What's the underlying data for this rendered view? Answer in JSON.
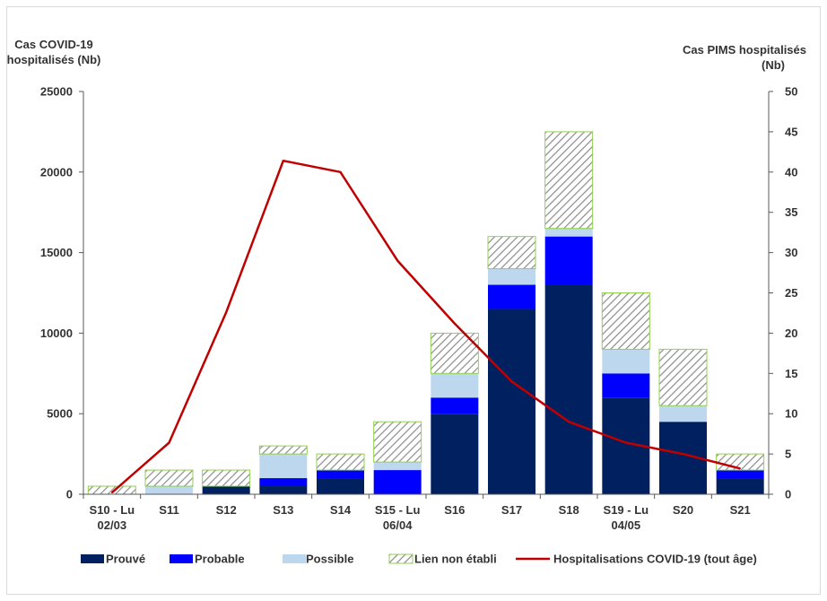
{
  "chart_data": {
    "type": "bar",
    "stacked": true,
    "categories": [
      [
        "S10 - Lu",
        "02/03"
      ],
      [
        "S11"
      ],
      [
        "S12"
      ],
      [
        "S13"
      ],
      [
        "S14"
      ],
      [
        "S15 - Lu",
        "06/04"
      ],
      [
        "S16"
      ],
      [
        "S17"
      ],
      [
        "S18"
      ],
      [
        "S19 - Lu",
        "04/05"
      ],
      [
        "S20"
      ],
      [
        "S21"
      ]
    ],
    "y_left": {
      "label_lines": [
        "Cas  COVID-19",
        "hospitalisés  (Nb)"
      ],
      "range": [
        0,
        25000
      ],
      "ticks": [
        0,
        5000,
        10000,
        15000,
        20000,
        25000
      ]
    },
    "y_right": {
      "label_lines": [
        "Cas PIMS hospitalisés",
        "(Nb)"
      ],
      "range": [
        0,
        50
      ],
      "ticks": [
        0,
        5,
        10,
        15,
        20,
        25,
        30,
        35,
        40,
        45,
        50
      ]
    },
    "grid": false,
    "legend_position": "bottom",
    "series": [
      {
        "name": "Prouvé",
        "kind": "bar",
        "axis": "right",
        "color": "#002060",
        "values": [
          0,
          0,
          1,
          1,
          2,
          0,
          10,
          23,
          26,
          12,
          9,
          2
        ]
      },
      {
        "name": "Probable",
        "kind": "bar",
        "axis": "right",
        "color": "#0000ff",
        "values": [
          0,
          0,
          0,
          1,
          1,
          3,
          2,
          3,
          6,
          3,
          0,
          1
        ]
      },
      {
        "name": "Possible",
        "kind": "bar",
        "axis": "right",
        "color": "#bdd7ee",
        "values": [
          0,
          1,
          0,
          3,
          0,
          1,
          3,
          2,
          1,
          3,
          2,
          0
        ]
      },
      {
        "name": "Lien non établi",
        "kind": "bar",
        "axis": "right",
        "color": "#92d050",
        "pattern": "hatch",
        "values": [
          1,
          2,
          2,
          1,
          2,
          5,
          5,
          4,
          12,
          7,
          7,
          2
        ]
      },
      {
        "name": "Hospitalisations COVID-19 (tout âge)",
        "kind": "line",
        "axis": "left",
        "color": "#c00000",
        "values": [
          100,
          3200,
          11300,
          20700,
          20000,
          14500,
          10600,
          7000,
          4500,
          3200,
          2500,
          1600
        ]
      }
    ]
  }
}
